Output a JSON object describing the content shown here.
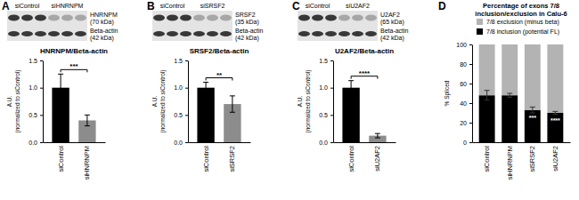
{
  "chart_data": [
    {
      "type": "bar",
      "panel": "A",
      "blot": {
        "lanes": [
          "siControl",
          "siHNRNPM"
        ],
        "bands": [
          {
            "label": "HNRNPM",
            "size": "(70 kDa)"
          },
          {
            "label": "Beta-actin",
            "size": "(42 kDa)"
          }
        ]
      },
      "title": "HNRNPM/Beta-actin",
      "y_label": [
        "A.U.",
        "(normalized to siControl)"
      ],
      "categories": [
        "siControl",
        "siHNRNPM"
      ],
      "values": [
        1.0,
        0.4
      ],
      "error": [
        0.25,
        0.1
      ],
      "colors": [
        "#000000",
        "#8c8c8c"
      ],
      "ylim": [
        0,
        1.5
      ],
      "yticks": [
        {
          "value": 0,
          "label": "0.0"
        },
        0.5,
        {
          "value": 1,
          "label": "1.0"
        },
        1.5
      ],
      "annotations": [
        "***"
      ]
    },
    {
      "type": "bar",
      "panel": "B",
      "blot": {
        "lanes": [
          "siControl",
          "siSRSF2"
        ],
        "bands": [
          {
            "label": "SRSF2",
            "size": "(35 kDa)"
          },
          {
            "label": "Beta-actin",
            "size": "(42 kDa)"
          }
        ]
      },
      "title": "SRSF2/Beta-actin",
      "y_label": [
        "A.U.",
        "(normalized to siControl)"
      ],
      "categories": [
        "siControl",
        "siSRSF2"
      ],
      "values": [
        1.0,
        0.7
      ],
      "error": [
        0.1,
        0.15
      ],
      "colors": [
        "#000000",
        "#8c8c8c"
      ],
      "ylim": [
        0,
        1.5
      ],
      "yticks": [
        {
          "value": 0,
          "label": "0.0"
        },
        0.5,
        {
          "value": 1,
          "label": "1.0"
        },
        1.5
      ],
      "annotations": [
        "**"
      ]
    },
    {
      "type": "bar",
      "panel": "C",
      "blot": {
        "lanes": [
          "siControl",
          "siU2AF2"
        ],
        "bands": [
          {
            "label": "U2AF2",
            "size": "(65 kDa)"
          },
          {
            "label": "Beta-actin",
            "size": "(42 kDa)"
          }
        ]
      },
      "title": "U2AF2/Beta-actin",
      "y_label": [
        "A.U.",
        "(normalized to siControl)"
      ],
      "categories": [
        "siControl",
        "siU2AF2"
      ],
      "values": [
        1.0,
        0.12
      ],
      "error": [
        0.13,
        0.04
      ],
      "colors": [
        "#000000",
        "#8c8c8c"
      ],
      "ylim": [
        0,
        1.5
      ],
      "yticks": [
        {
          "value": 0,
          "label": "0.0"
        },
        0.5,
        {
          "value": 1,
          "label": "1.0"
        },
        1.5
      ],
      "annotations": [
        "****"
      ]
    },
    {
      "type": "bar",
      "panel": "D",
      "stacked": true,
      "title": [
        "Percentage of exons 7/8",
        "inclusion/exclusion in Calu-6"
      ],
      "y_label": "% Spliced",
      "categories": [
        "siControl",
        "siHNRNPM",
        "siSRSF2",
        "siU2AF2"
      ],
      "series": [
        {
          "name": "7/8 inclusion (potential FL)",
          "color": "#000000",
          "values": [
            48,
            48,
            33,
            30
          ],
          "error": [
            5,
            2,
            3,
            1.5
          ]
        },
        {
          "name": "7/8 exclusion (minus beta)",
          "color": "#b3b3b3",
          "values": [
            52,
            52,
            67,
            70
          ]
        }
      ],
      "ylim": [
        0,
        100
      ],
      "yticks": [
        0,
        20,
        40,
        60,
        80,
        100
      ],
      "legend": "top",
      "annotations": [
        null,
        null,
        "***",
        "****"
      ]
    }
  ]
}
